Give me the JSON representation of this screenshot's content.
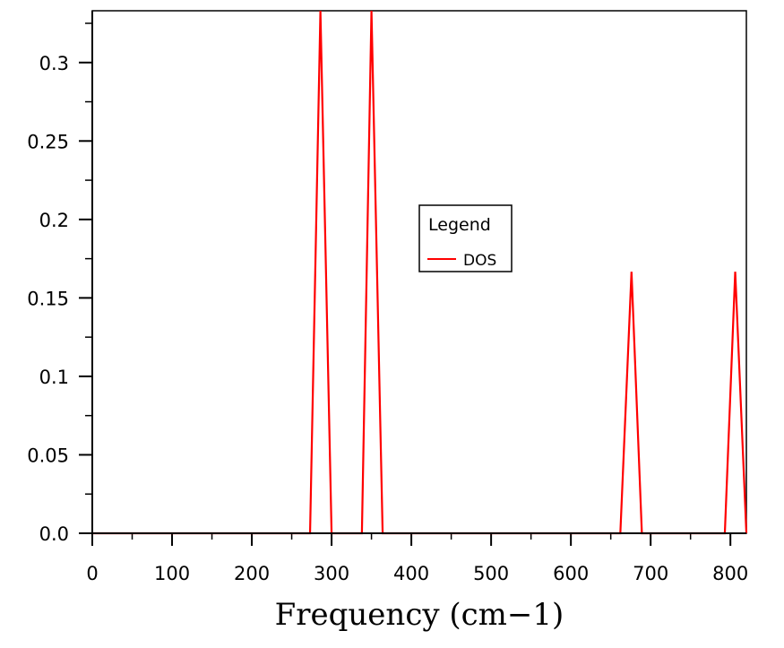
{
  "chart_data": {
    "type": "line",
    "title": "",
    "xlabel": "Frequency (cm−1)",
    "ylabel": "",
    "xlim": [
      0,
      820
    ],
    "ylim": [
      0,
      0.333
    ],
    "x_ticks": [
      0,
      100,
      200,
      300,
      400,
      500,
      600,
      700,
      800
    ],
    "x_tick_labels": [
      "0",
      "100",
      "200",
      "300",
      "400",
      "500",
      "600",
      "700",
      "800"
    ],
    "y_ticks": [
      0,
      0.05,
      0.1,
      0.15,
      0.2,
      0.25,
      0.3
    ],
    "y_tick_labels": [
      "0.0",
      "0.05",
      "0.1",
      "0.15",
      "0.2",
      "0.25",
      "0.3"
    ],
    "grid": false,
    "legend": {
      "title": "Legend",
      "position": "center-right"
    },
    "series": [
      {
        "name": "DOS",
        "color": "#ff0000",
        "x": [
          0,
          273,
          286,
          300,
          338,
          350,
          364,
          662,
          676,
          689,
          793,
          806,
          820
        ],
        "y": [
          0,
          0,
          0.333,
          0,
          0,
          0.333,
          0,
          0,
          0.1667,
          0,
          0,
          0.1667,
          0
        ]
      }
    ]
  }
}
